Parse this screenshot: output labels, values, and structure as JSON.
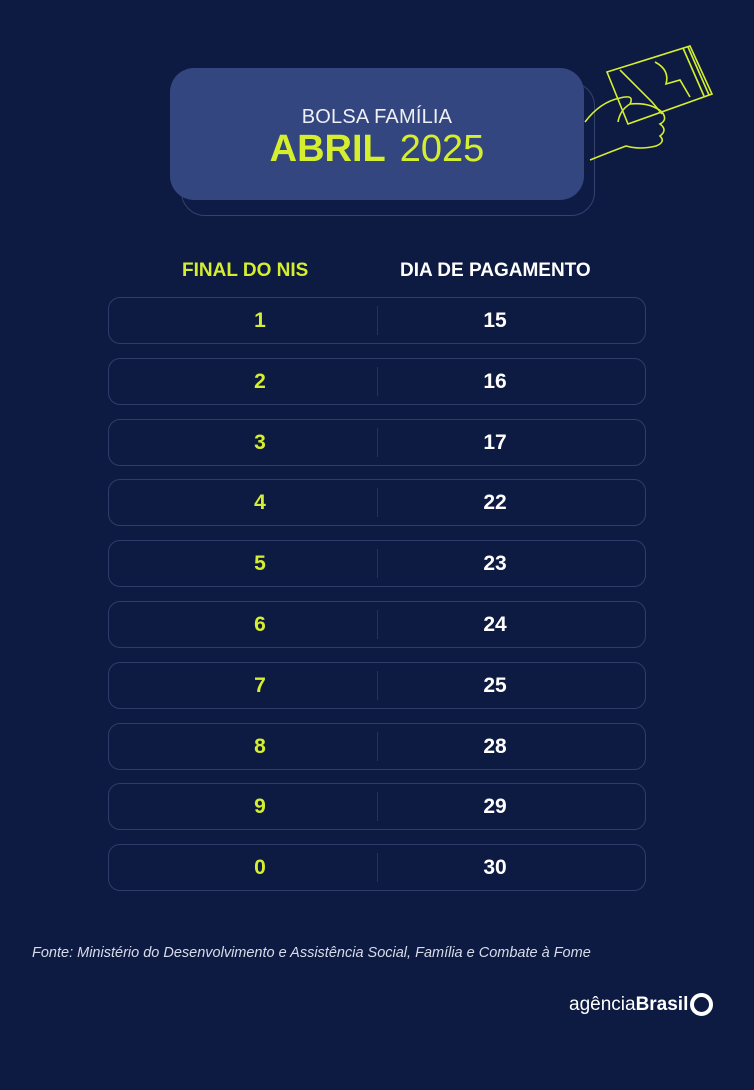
{
  "header": {
    "program": "BOLSA FAMÍLIA",
    "month": "ABRIL",
    "year": "2025"
  },
  "table": {
    "columns": [
      "FINAL DO NIS",
      "DIA DE PAGAMENTO"
    ],
    "rows": [
      {
        "nis": "1",
        "day": "15"
      },
      {
        "nis": "2",
        "day": "16"
      },
      {
        "nis": "3",
        "day": "17"
      },
      {
        "nis": "4",
        "day": "22"
      },
      {
        "nis": "5",
        "day": "23"
      },
      {
        "nis": "6",
        "day": "24"
      },
      {
        "nis": "7",
        "day": "25"
      },
      {
        "nis": "8",
        "day": "28"
      },
      {
        "nis": "9",
        "day": "29"
      },
      {
        "nis": "0",
        "day": "30"
      }
    ]
  },
  "source": "Fonte: Ministério do Desenvolvimento e Assistência Social, Família e Combate à Fome",
  "logo": {
    "part1": "agência",
    "part2": "Brasil"
  },
  "colors": {
    "background": "#0d1a41",
    "accent": "#d5ef2f",
    "box": "#34467f"
  },
  "icons": {
    "illustration": "hand-holding-card-icon"
  }
}
